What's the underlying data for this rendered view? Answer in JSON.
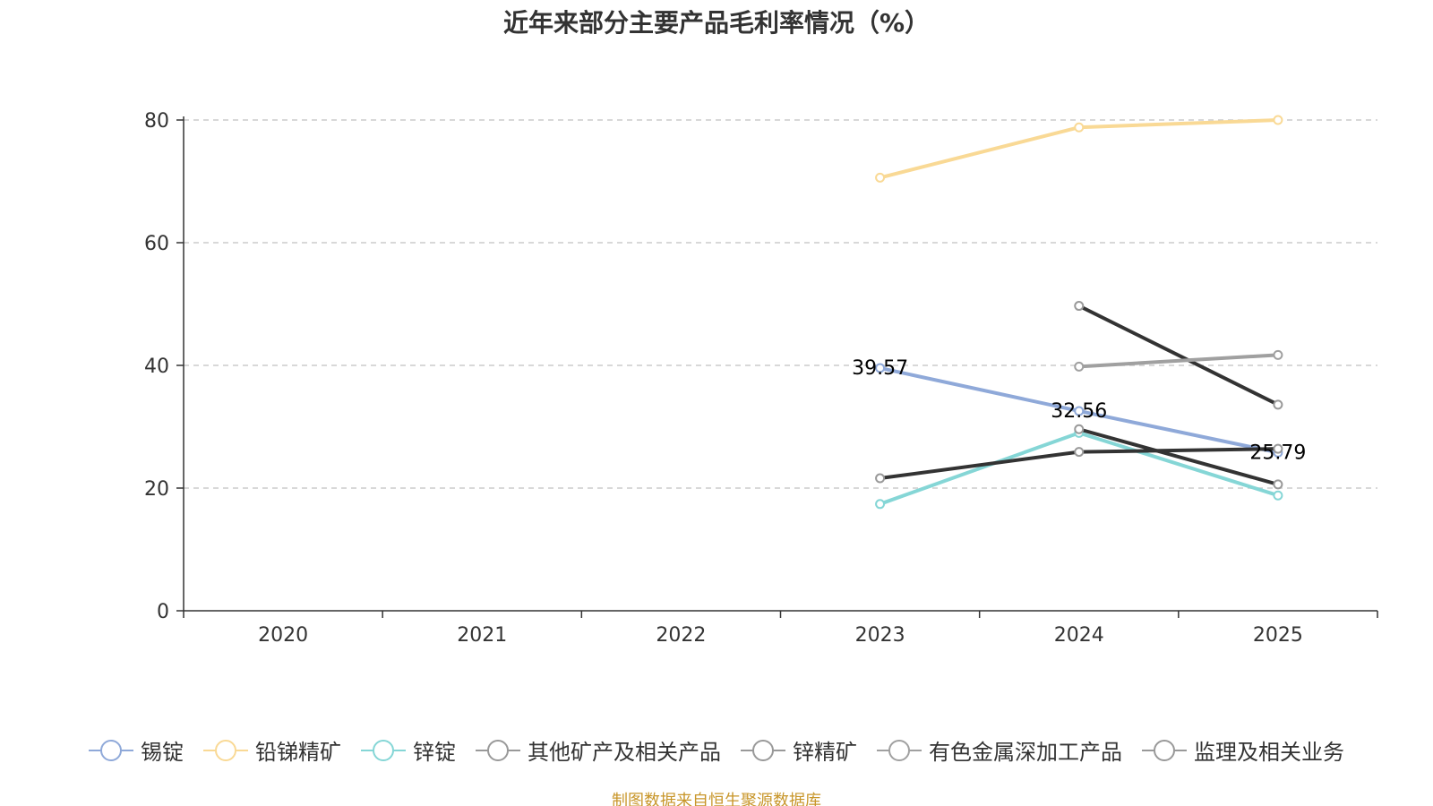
{
  "chart_data": {
    "type": "line",
    "title": "近年来部分主要产品毛利率情况（%）",
    "xlabel": "",
    "ylabel": "",
    "categories": [
      "2020",
      "2021",
      "2022",
      "2023",
      "2024",
      "2025"
    ],
    "ylim": [
      0,
      80
    ],
    "yticks": [
      0,
      20,
      40,
      60,
      80
    ],
    "grid": "horizontal-dashed",
    "legend_position": "bottom",
    "series": [
      {
        "name": "锡锭",
        "color": "#8fa9d9",
        "values": [
          null,
          null,
          null,
          39.57,
          32.56,
          25.79
        ],
        "labels": [
          "",
          "",
          "",
          "39.57",
          "32.56",
          "25.79"
        ]
      },
      {
        "name": "铅锑精矿",
        "color": "#f9d995",
        "values": [
          null,
          null,
          null,
          70.6,
          78.8,
          80.0
        ],
        "labels": []
      },
      {
        "name": "锌锭",
        "color": "#85d6d6",
        "values": [
          null,
          null,
          null,
          17.4,
          29.0,
          18.8
        ],
        "labels": []
      },
      {
        "name": "其他矿产及相关产品",
        "color": "#333333",
        "values": [
          null,
          null,
          null,
          null,
          49.7,
          33.6
        ],
        "labels": []
      },
      {
        "name": "锌精矿",
        "color": "#333333",
        "values": [
          null,
          null,
          null,
          null,
          29.6,
          20.6
        ],
        "labels": []
      },
      {
        "name": "有色金属深加工产品",
        "color": "#a0a0a0",
        "values": [
          null,
          null,
          null,
          null,
          39.8,
          41.7
        ],
        "labels": []
      },
      {
        "name": "监理及相关业务",
        "color": "#333333",
        "values": [
          null,
          null,
          null,
          21.6,
          25.9,
          26.4
        ],
        "labels": []
      }
    ],
    "legend_marker_color": "#999999",
    "source": "制图数据来自恒生聚源数据库"
  }
}
